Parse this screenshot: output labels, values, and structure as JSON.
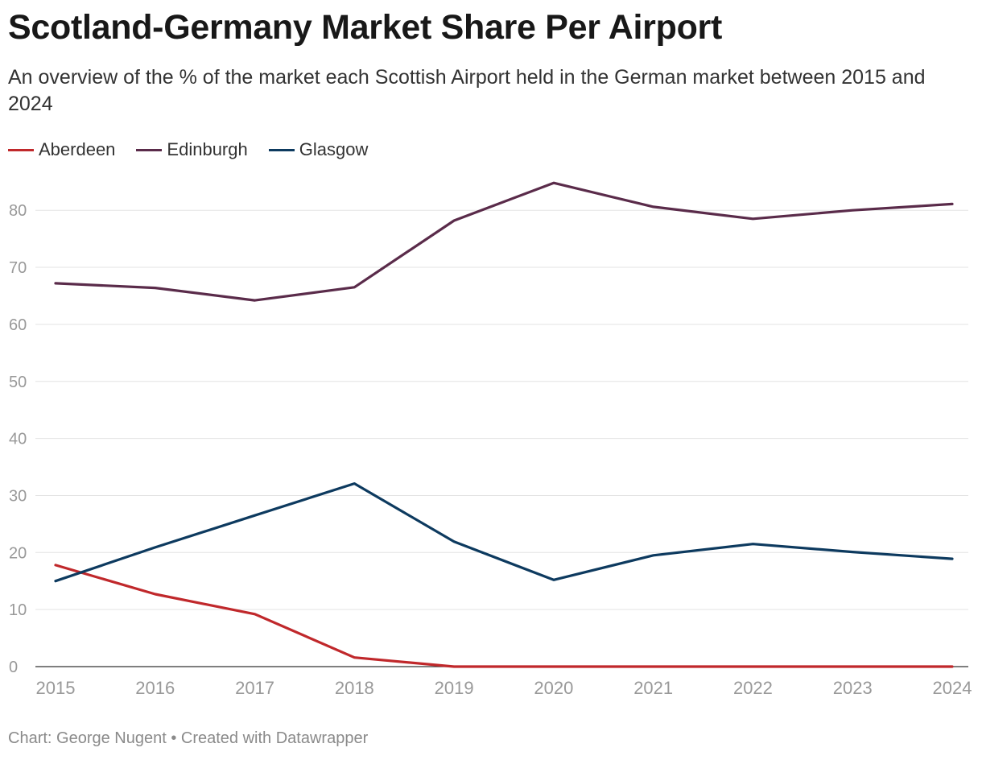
{
  "chart_data": {
    "type": "line",
    "title": "Scotland-Germany Market Share Per Airport",
    "subtitle": "An overview of the % of the market each Scottish Airport held in the German market between 2015 and 2024",
    "x": [
      "2015",
      "2016",
      "2017",
      "2018",
      "2019",
      "2020",
      "2021",
      "2022",
      "2023",
      "2024"
    ],
    "xlabel": "",
    "ylabel": "",
    "ylim": [
      0,
      85
    ],
    "yticks": [
      "0",
      "10",
      "20",
      "30",
      "40",
      "50",
      "60",
      "70",
      "80"
    ],
    "grid": true,
    "legend": "top-left",
    "series": [
      {
        "name": "Aberdeen",
        "color": "#c0282b",
        "values": [
          17.8,
          12.7,
          9.2,
          1.6,
          0,
          0,
          0,
          0,
          0,
          0
        ]
      },
      {
        "name": "Edinburgh",
        "color": "#5a2b4a",
        "values": [
          67.2,
          66.4,
          64.2,
          66.5,
          78.2,
          84.8,
          80.6,
          78.5,
          80.0,
          81.1
        ]
      },
      {
        "name": "Glasgow",
        "color": "#0d3a5f",
        "values": [
          15.0,
          20.9,
          26.5,
          32.1,
          21.9,
          15.2,
          19.5,
          21.5,
          20.1,
          18.9
        ]
      }
    ]
  },
  "footer": "Chart: George Nugent • Created with Datawrapper"
}
